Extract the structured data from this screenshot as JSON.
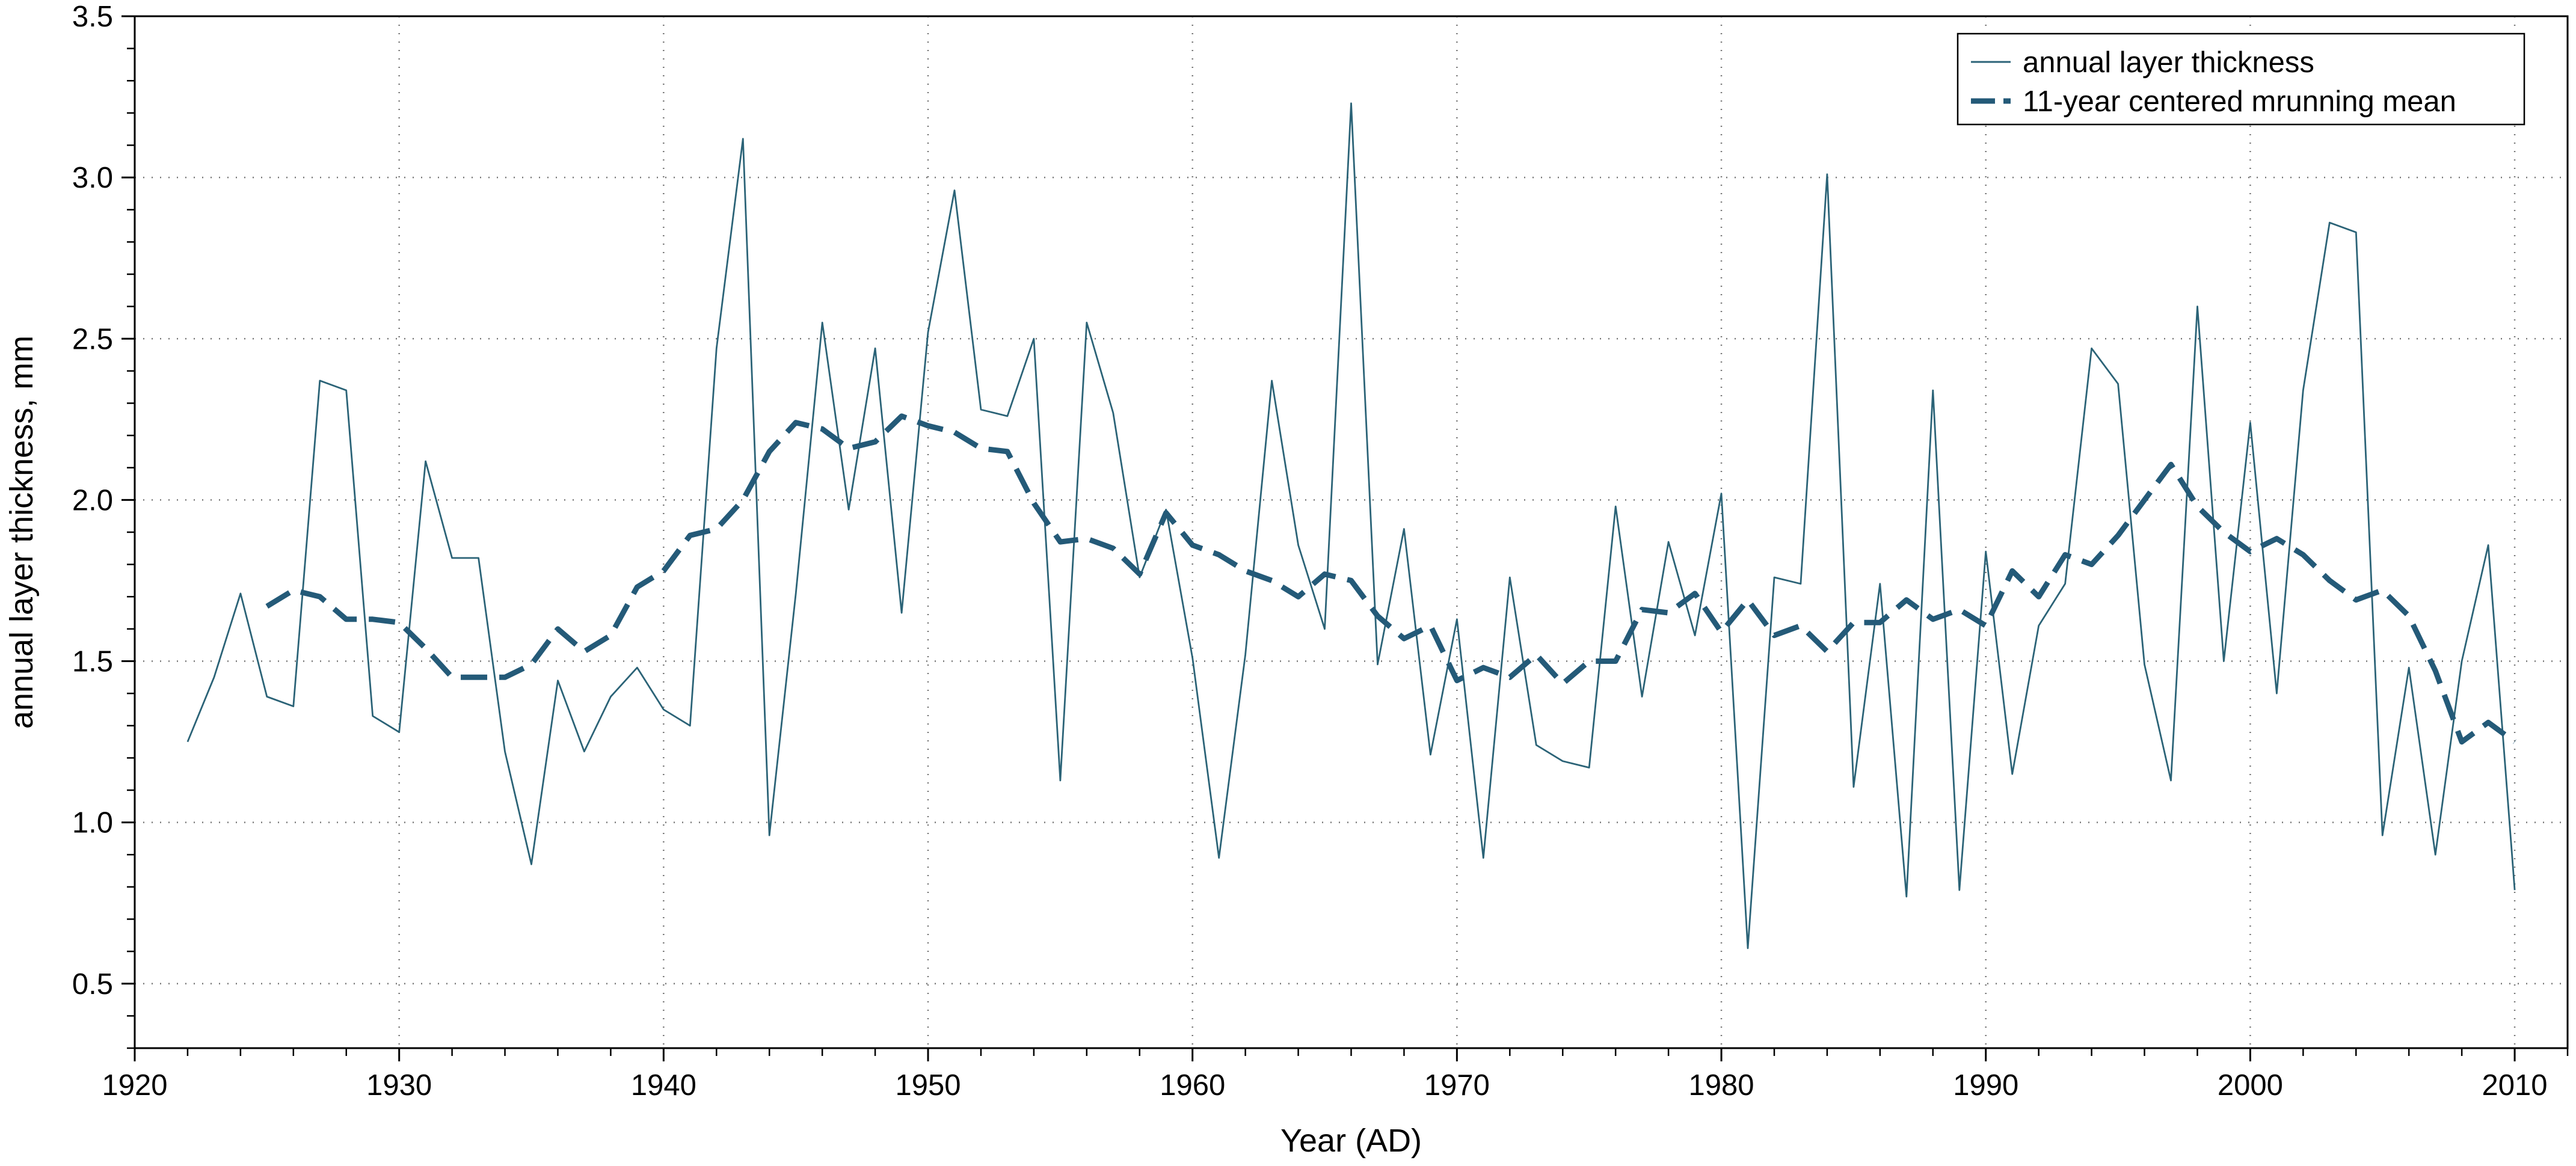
{
  "chart_data": {
    "type": "line",
    "title": "",
    "xlabel": "Year (AD)",
    "ylabel": "annual layer thickness, mm",
    "xlim": [
      1920,
      2012
    ],
    "ylim": [
      0.3,
      3.5
    ],
    "xticks": [
      1920,
      1930,
      1940,
      1950,
      1960,
      1970,
      1980,
      1990,
      2000,
      2010
    ],
    "xtick_labels": [
      "1920",
      "1930",
      "1940",
      "1950",
      "1960",
      "1970",
      "1980",
      "1990",
      "2000",
      "2010"
    ],
    "yticks": [
      0.5,
      1.0,
      1.5,
      2.0,
      2.5,
      3.0,
      3.5
    ],
    "ytick_labels": [
      "0.5",
      "1.0",
      "1.5",
      "2.0",
      "2.5",
      "3.0",
      "3.5"
    ],
    "grid": "dotted",
    "legend_position": "top-right",
    "series": [
      {
        "name": "annual layer thickness",
        "style": "thin-solid",
        "color": "#2b6377",
        "x": [
          1922,
          1923,
          1924,
          1925,
          1926,
          1927,
          1928,
          1929,
          1930,
          1931,
          1932,
          1933,
          1934,
          1935,
          1936,
          1937,
          1938,
          1939,
          1940,
          1941,
          1942,
          1943,
          1944,
          1945,
          1946,
          1947,
          1948,
          1949,
          1950,
          1951,
          1952,
          1953,
          1954,
          1955,
          1956,
          1957,
          1958,
          1959,
          1960,
          1961,
          1962,
          1963,
          1964,
          1965,
          1966,
          1967,
          1968,
          1969,
          1970,
          1971,
          1972,
          1973,
          1974,
          1975,
          1976,
          1977,
          1978,
          1979,
          1980,
          1981,
          1982,
          1983,
          1984,
          1985,
          1986,
          1987,
          1988,
          1989,
          1990,
          1991,
          1992,
          1993,
          1994,
          1995,
          1996,
          1997,
          1998,
          1999,
          2000,
          2001,
          2002,
          2003,
          2004,
          2005,
          2006,
          2007,
          2008,
          2009,
          2010
        ],
        "values": [
          1.25,
          1.45,
          1.71,
          1.39,
          1.36,
          2.37,
          2.34,
          1.33,
          1.28,
          2.12,
          1.82,
          1.82,
          1.22,
          0.87,
          1.44,
          1.22,
          1.39,
          1.48,
          1.35,
          1.3,
          2.47,
          3.12,
          0.96,
          1.71,
          2.55,
          1.97,
          2.47,
          1.65,
          2.52,
          2.96,
          2.28,
          2.26,
          2.5,
          1.13,
          2.55,
          2.27,
          1.76,
          1.97,
          1.51,
          0.89,
          1.52,
          2.37,
          1.86,
          1.6,
          3.23,
          1.49,
          1.91,
          1.21,
          1.63,
          0.89,
          1.76,
          1.24,
          1.19,
          1.17,
          1.98,
          1.39,
          1.87,
          1.58,
          2.02,
          0.61,
          1.76,
          1.74,
          3.01,
          1.11,
          1.74,
          0.77,
          2.34,
          0.79,
          1.84,
          1.15,
          1.61,
          1.74,
          2.47,
          2.36,
          1.49,
          1.13,
          2.6,
          1.5,
          2.24,
          1.4,
          2.34,
          2.86,
          2.83,
          0.96,
          1.48,
          0.9,
          1.5,
          1.86,
          0.79
        ]
      },
      {
        "name": "11-year centered mrunning mean",
        "style": "thick-dashed",
        "color": "#245a78",
        "x": [
          1925,
          1926,
          1927,
          1928,
          1929,
          1930,
          1931,
          1932,
          1933,
          1934,
          1935,
          1936,
          1937,
          1938,
          1939,
          1940,
          1941,
          1942,
          1943,
          1944,
          1945,
          1946,
          1947,
          1948,
          1949,
          1950,
          1951,
          1952,
          1953,
          1954,
          1955,
          1956,
          1957,
          1958,
          1959,
          1960,
          1961,
          1962,
          1963,
          1964,
          1965,
          1966,
          1967,
          1968,
          1969,
          1970,
          1971,
          1972,
          1973,
          1974,
          1975,
          1976,
          1977,
          1978,
          1979,
          1980,
          1981,
          1982,
          1983,
          1984,
          1985,
          1986,
          1987,
          1988,
          1989,
          1990,
          1991,
          1992,
          1993,
          1994,
          1995,
          1996,
          1997,
          1998,
          1999,
          2000,
          2001,
          2002,
          2003,
          2004,
          2005,
          2006,
          2007,
          2008,
          2009,
          2010
        ],
        "values": [
          1.67,
          1.72,
          1.7,
          1.63,
          1.63,
          1.62,
          1.54,
          1.45,
          1.45,
          1.45,
          1.49,
          1.6,
          1.53,
          1.58,
          1.73,
          1.78,
          1.89,
          1.91,
          2.0,
          2.15,
          2.24,
          2.22,
          2.16,
          2.18,
          2.26,
          2.23,
          2.21,
          2.16,
          2.15,
          1.99,
          1.87,
          1.88,
          1.85,
          1.77,
          1.96,
          1.86,
          1.83,
          1.78,
          1.75,
          1.7,
          1.77,
          1.75,
          1.64,
          1.57,
          1.61,
          1.44,
          1.48,
          1.45,
          1.52,
          1.43,
          1.5,
          1.5,
          1.66,
          1.65,
          1.71,
          1.59,
          1.69,
          1.58,
          1.61,
          1.53,
          1.62,
          1.62,
          1.69,
          1.63,
          1.66,
          1.61,
          1.78,
          1.7,
          1.83,
          1.8,
          1.89,
          2.0,
          2.11,
          1.98,
          1.9,
          1.84,
          1.88,
          1.83,
          1.75,
          1.69,
          1.72,
          1.64,
          1.47,
          1.25,
          1.31,
          1.25
        ]
      }
    ]
  }
}
